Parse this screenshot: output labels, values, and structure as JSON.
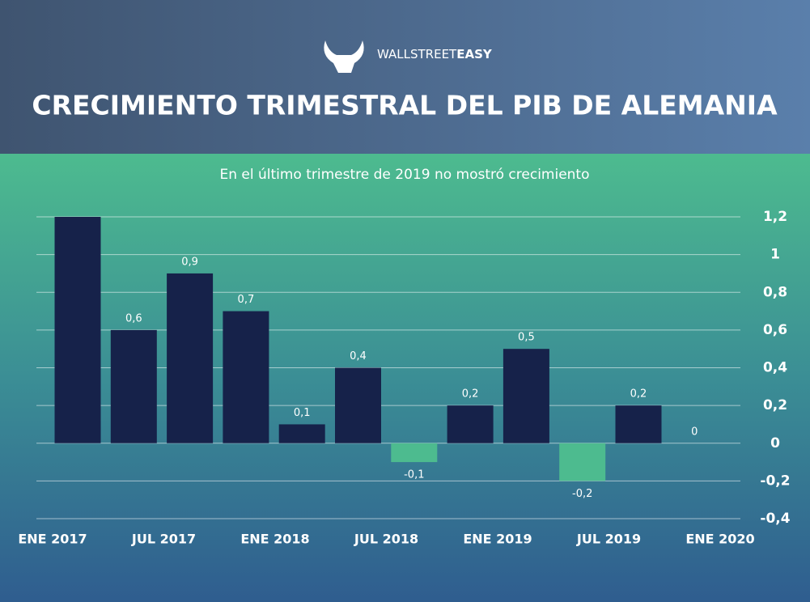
{
  "brand": {
    "light": "WALLSTREET",
    "bold": "EASY"
  },
  "chart_data": {
    "type": "bar",
    "title": "CRECIMIENTO TRIMESTRAL DEL PIB DE ALEMANIA",
    "subtitle": "En el último trimestre de 2019 no mostró crecimiento",
    "categories": [
      "ENE 2017",
      null,
      "JUL 2017",
      null,
      "ENE 2018",
      null,
      "JUL 2018",
      null,
      "ENE 2019",
      null,
      "JUL 2019",
      null,
      "ENE 2020"
    ],
    "values": [
      1.2,
      0.6,
      0.9,
      0.7,
      0.1,
      0.4,
      -0.1,
      0.2,
      0.5,
      -0.2,
      0.2,
      0,
      null
    ],
    "value_labels": [
      null,
      "0,6",
      "0,9",
      "0,7",
      "0,1",
      "0,4",
      "-0,1",
      "0,2",
      "0,5",
      "-0,2",
      "0,2",
      "0",
      null
    ],
    "positive_color": "#16224a",
    "negative_color": "#4dbb8f",
    "ylim": [
      -0.4,
      1.2
    ],
    "yticks": [
      {
        "value": -0.4,
        "label": "-0,4"
      },
      {
        "value": -0.2,
        "label": "-0,2"
      },
      0,
      {
        "value": 0.2,
        "label": "0,2"
      },
      {
        "value": 0.4,
        "label": "0,4"
      },
      {
        "value": 0.6,
        "label": "0,6"
      },
      {
        "value": 0.8,
        "label": "0,8"
      },
      1,
      {
        "value": 1.2,
        "label": "1,2"
      }
    ],
    "grid": true,
    "y_axis_side": "right"
  }
}
